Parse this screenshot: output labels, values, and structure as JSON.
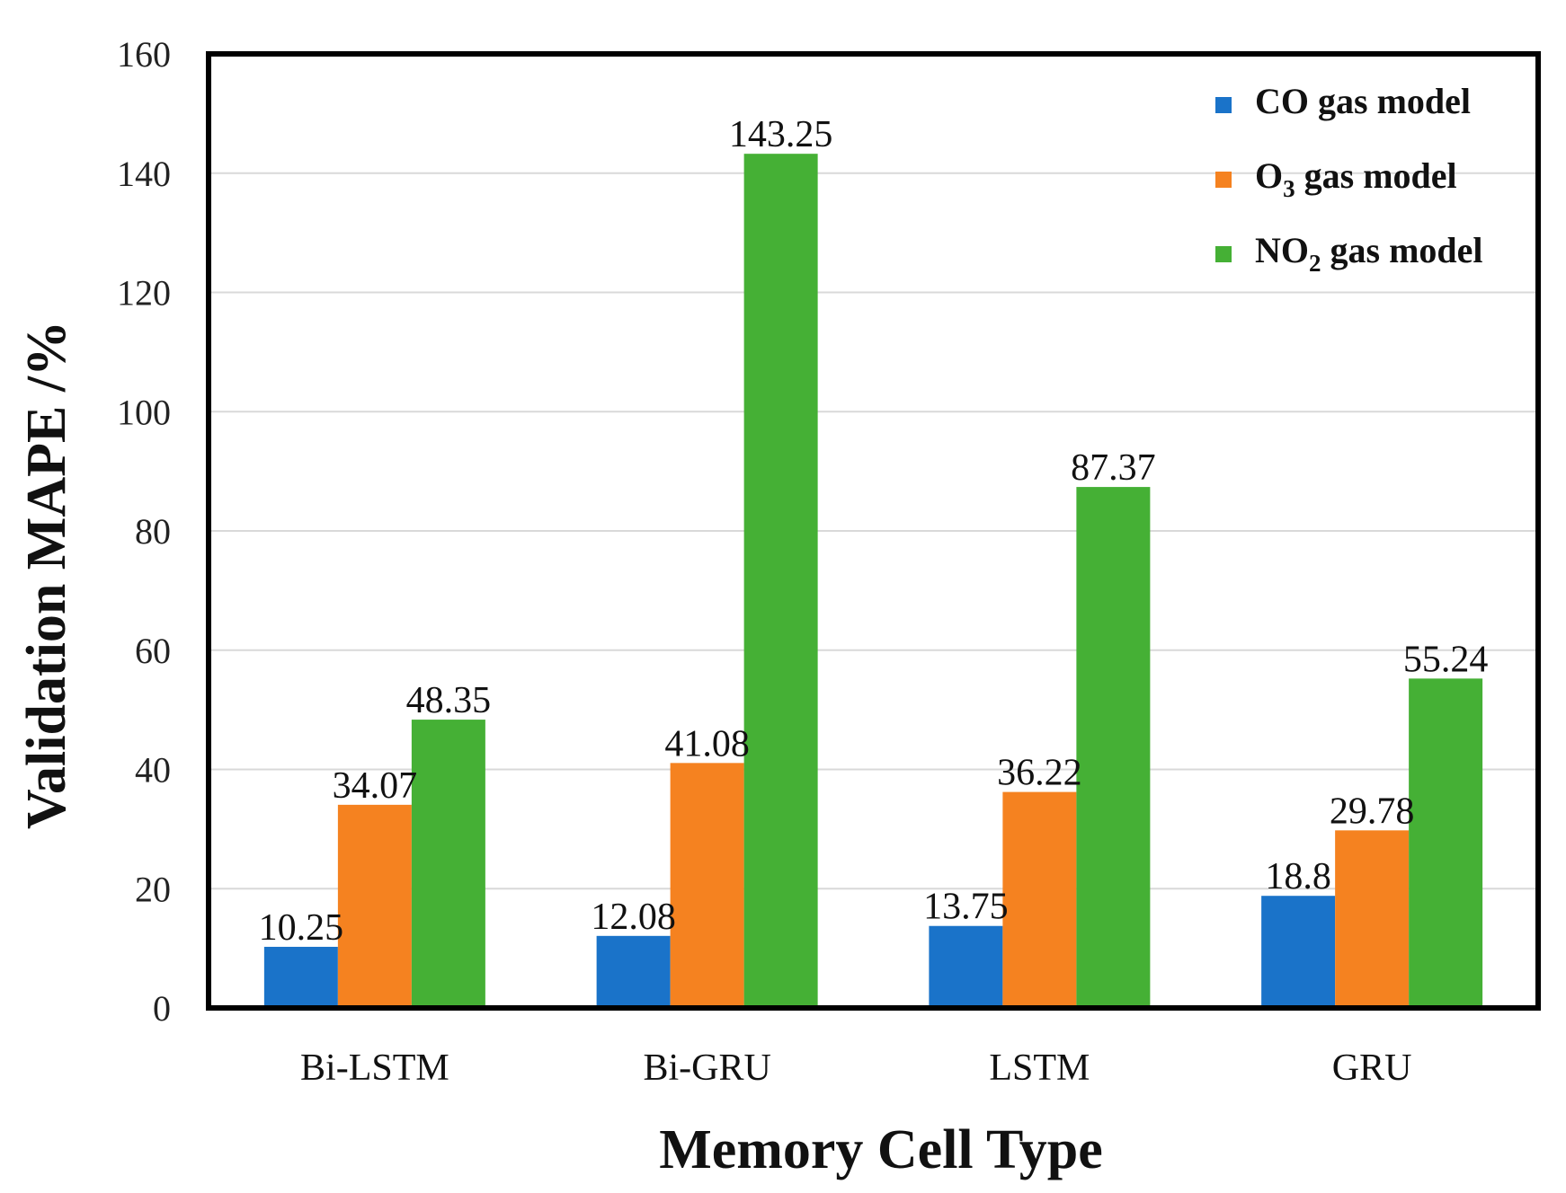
{
  "chart_data": {
    "type": "bar",
    "title": "",
    "xlabel": "Memory Cell Type",
    "ylabel": "Validation MAPE /%",
    "ylim": [
      0,
      160
    ],
    "yticks": [
      0,
      20,
      40,
      60,
      80,
      100,
      120,
      140,
      160
    ],
    "ytick_labels": [
      "0",
      "20",
      "40",
      "60",
      "80",
      "100",
      "120",
      "140",
      "160"
    ],
    "grid": true,
    "legend_position": "top-right",
    "categories": [
      "Bi-LSTM",
      "Bi-GRU",
      "LSTM",
      "GRU"
    ],
    "series": [
      {
        "name": "CO gas model",
        "legend": {
          "main": "CO gas model",
          "sub": "",
          "rest": ""
        },
        "color": "#1a73c9",
        "values": [
          10.25,
          12.08,
          13.75,
          18.8
        ],
        "labels": [
          "10.25",
          "12.08",
          "13.75",
          "18.8"
        ]
      },
      {
        "name": "O3 gas model",
        "legend": {
          "main": "O",
          "sub": "3",
          "rest": " gas model"
        },
        "color": "#f58220",
        "values": [
          34.07,
          41.08,
          36.22,
          29.78
        ],
        "labels": [
          "34.07",
          "41.08",
          "36.22",
          "29.78"
        ]
      },
      {
        "name": "NO2 gas model",
        "legend": {
          "main": "NO",
          "sub": "2",
          "rest": " gas model"
        },
        "color": "#45b035",
        "values": [
          48.35,
          143.25,
          87.37,
          55.24
        ],
        "labels": [
          "48.35",
          "143.25",
          "87.37",
          "55.24"
        ]
      }
    ]
  }
}
